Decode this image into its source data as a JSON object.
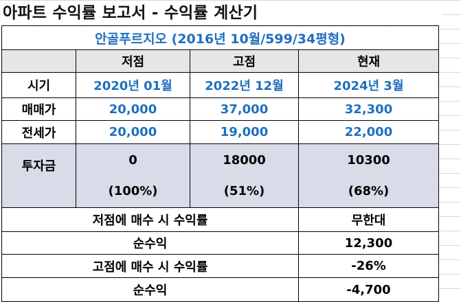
{
  "title": "아파트 수익률 보고서 - 수익률 계산기",
  "subtitle": "안골푸르지오 (2016년 10월/599/34평형)",
  "columns": [
    "저점",
    "고점",
    "현재"
  ],
  "rows": {
    "period": {
      "label": "시기",
      "values": [
        "2020년 01월",
        "2022년 12월",
        "2024년 3월"
      ]
    },
    "sale": {
      "label": "매매가",
      "values": [
        "20,000",
        "37,000",
        "32,300"
      ]
    },
    "jeonse": {
      "label": "전세가",
      "values": [
        "20,000",
        "19,000",
        "22,000"
      ]
    },
    "investment": {
      "label": "투자금",
      "amounts": [
        "0",
        "18000",
        "10300"
      ],
      "ratios": [
        "(100%)",
        "(51%)",
        "(68%)"
      ]
    }
  },
  "summary": [
    {
      "label": "저점에 매수 시 수익률",
      "value": "무한대"
    },
    {
      "label": "순수익",
      "value": "12,300"
    },
    {
      "label": "고점에 매수 시 수익률",
      "value": "-26%"
    },
    {
      "label": "순수익",
      "value": "-4,700"
    }
  ]
}
